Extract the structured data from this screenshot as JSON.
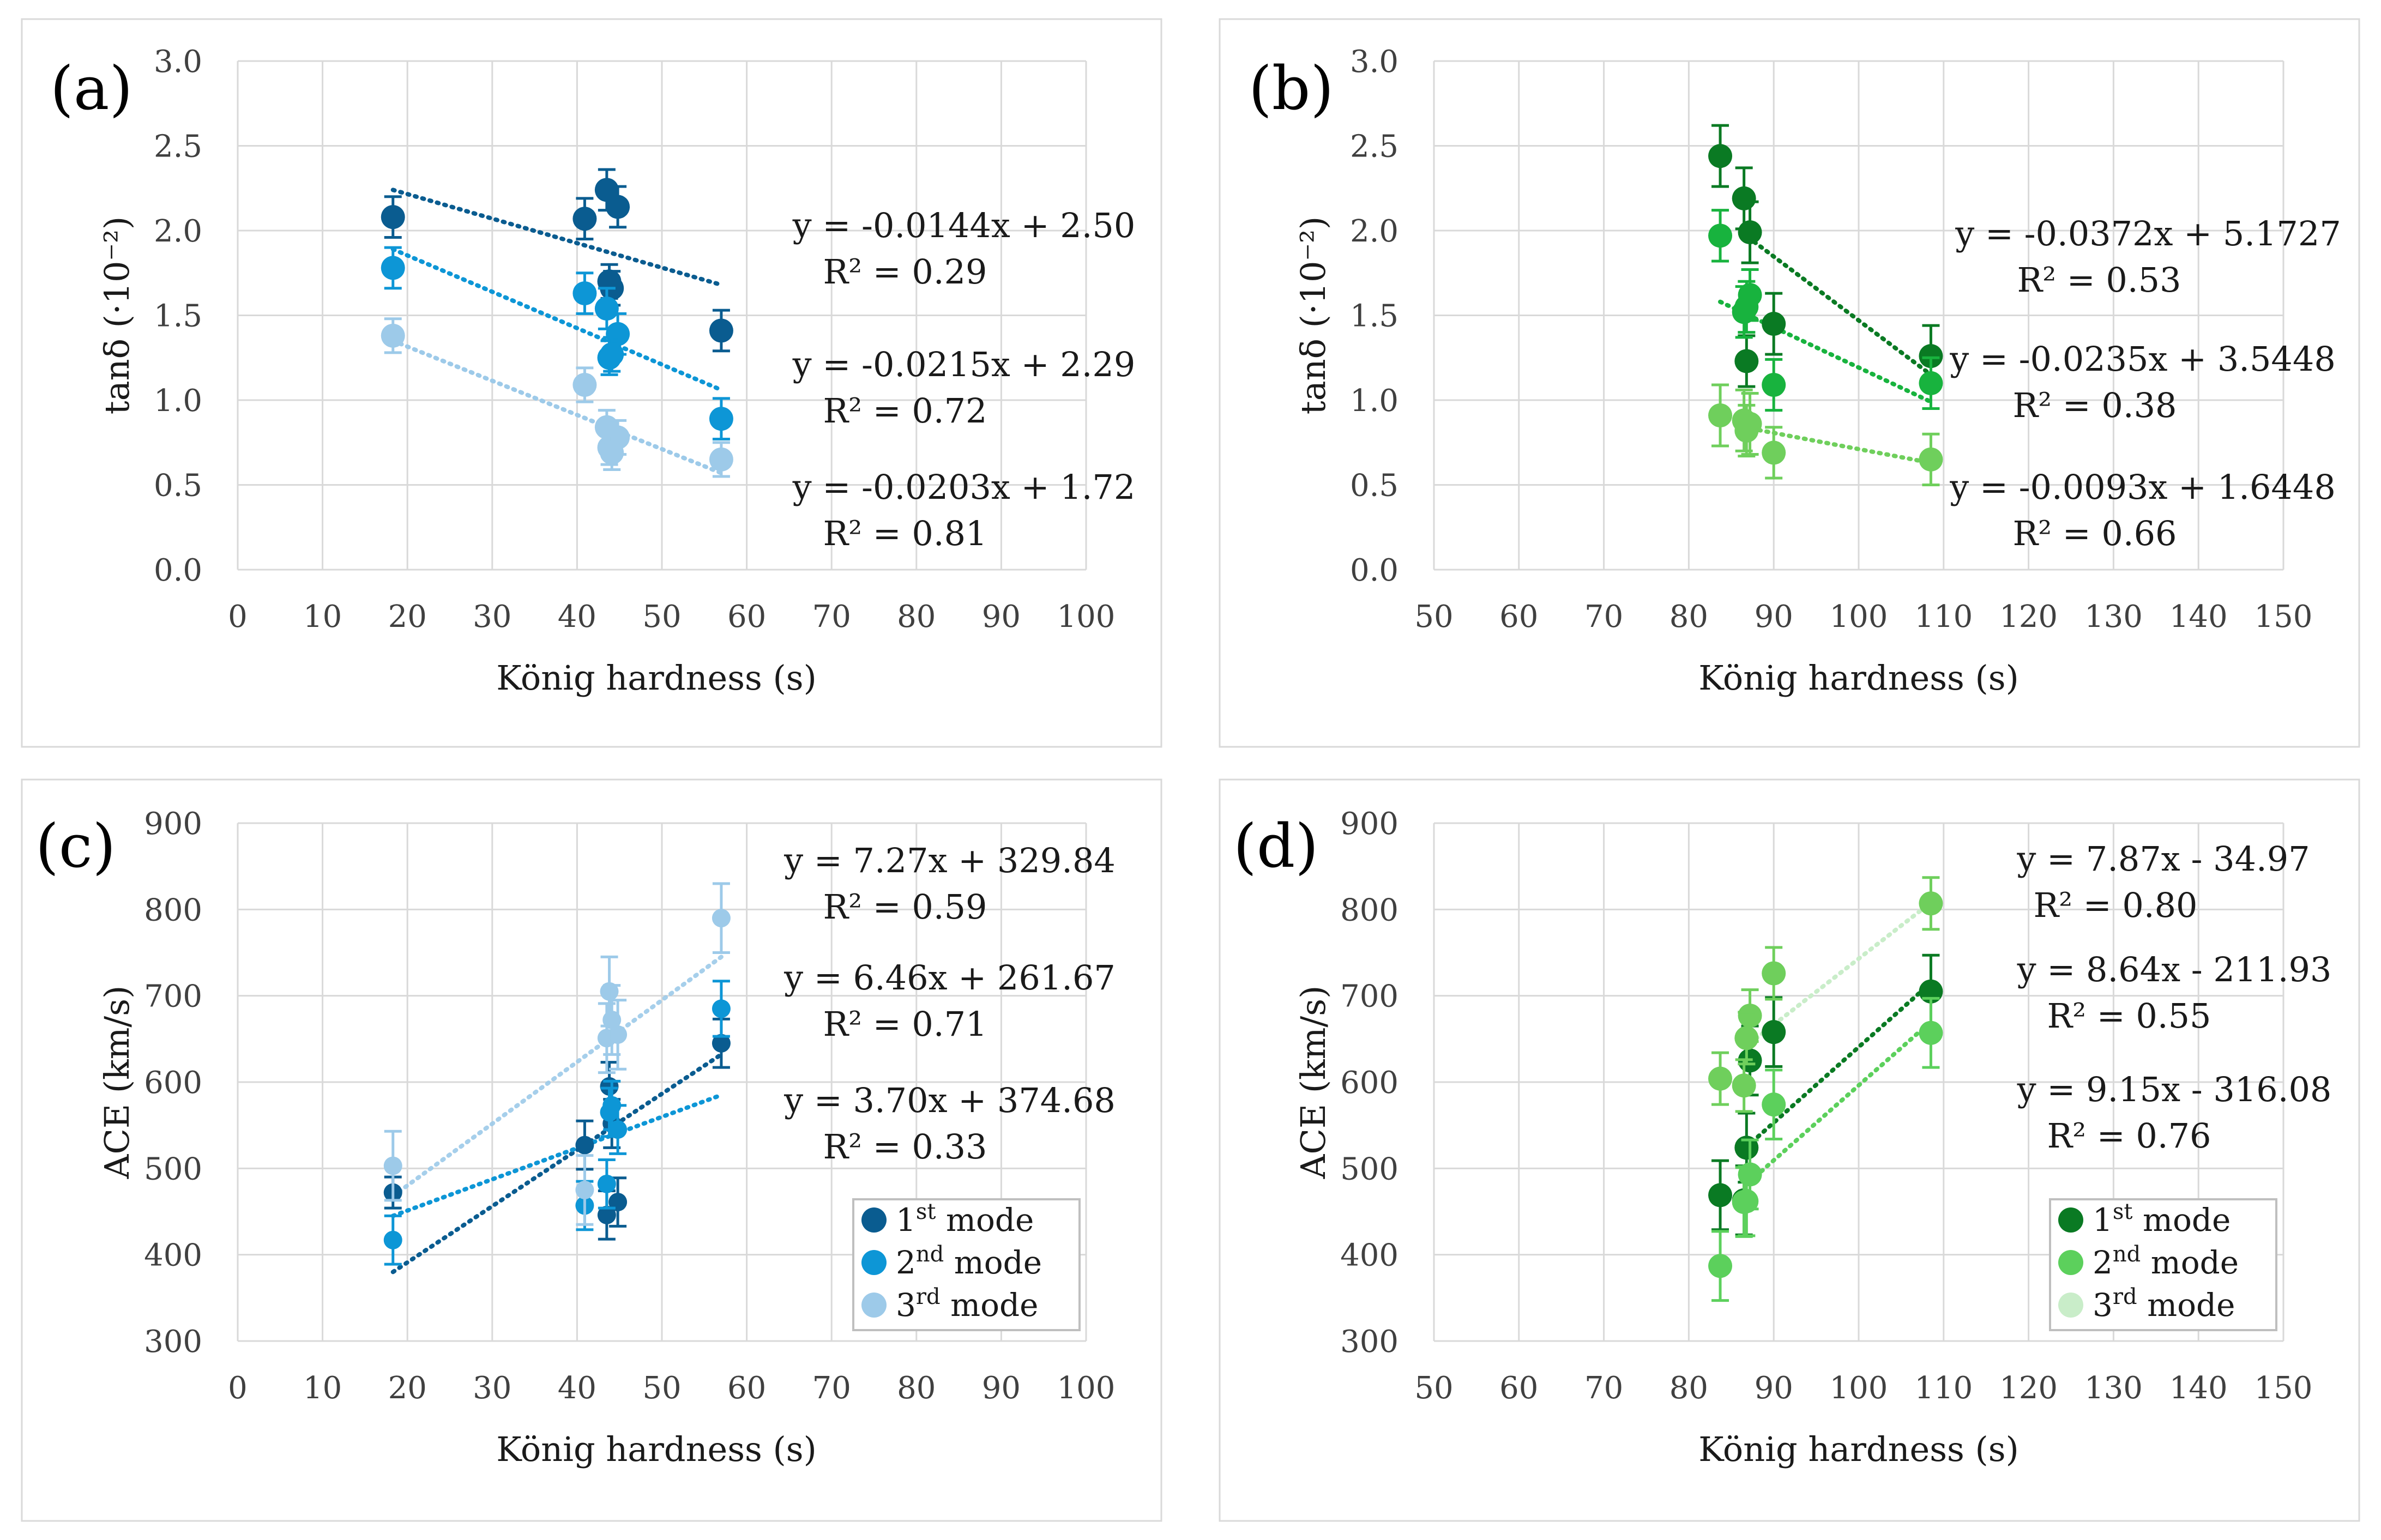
{
  "chart_data": [
    {
      "id": "a",
      "type": "scatter",
      "panel_label": "(a)",
      "xlabel": "König hardness (s)",
      "ylabel": "tanδ (·10⁻²)",
      "xlim": [
        0,
        100
      ],
      "ylim": [
        0,
        3
      ],
      "xticks": [
        "0",
        "10",
        "20",
        "30",
        "40",
        "50",
        "60",
        "70",
        "80",
        "90",
        "100"
      ],
      "yticks": [
        "0.0",
        "0.5",
        "1.0",
        "1.5",
        "2.0",
        "2.5",
        "3.0"
      ],
      "series": [
        {
          "name": "1st mode",
          "color": "#0a5c90",
          "points": [
            {
              "x": 18.3,
              "y": 2.08,
              "err": 0.12
            },
            {
              "x": 40.9,
              "y": 2.07,
              "err": 0.12
            },
            {
              "x": 43.5,
              "y": 2.24,
              "err": 0.12
            },
            {
              "x": 44.8,
              "y": 2.14,
              "err": 0.12
            },
            {
              "x": 43.8,
              "y": 1.7,
              "err": 0.1
            },
            {
              "x": 44.1,
              "y": 1.66,
              "err": 0.1
            },
            {
              "x": 57,
              "y": 1.41,
              "err": 0.12
            }
          ],
          "trend": {
            "x": [
              18.3,
              57
            ],
            "y": [
              2.24,
              1.68
            ]
          }
        },
        {
          "name": "2nd mode",
          "color": "#0d96d6",
          "points": [
            {
              "x": 18.3,
              "y": 1.78,
              "err": 0.12
            },
            {
              "x": 40.9,
              "y": 1.63,
              "err": 0.12
            },
            {
              "x": 43.5,
              "y": 1.54,
              "err": 0.12
            },
            {
              "x": 44.8,
              "y": 1.39,
              "err": 0.12
            },
            {
              "x": 43.8,
              "y": 1.25,
              "err": 0.1
            },
            {
              "x": 44.1,
              "y": 1.27,
              "err": 0.1
            },
            {
              "x": 57,
              "y": 0.89,
              "err": 0.12
            }
          ],
          "trend": {
            "x": [
              18.3,
              57
            ],
            "y": [
              1.89,
              1.06
            ]
          }
        },
        {
          "name": "3rd mode",
          "color": "#9dcae9",
          "points": [
            {
              "x": 18.3,
              "y": 1.38,
              "err": 0.1
            },
            {
              "x": 40.9,
              "y": 1.09,
              "err": 0.1
            },
            {
              "x": 43.5,
              "y": 0.84,
              "err": 0.1
            },
            {
              "x": 44.8,
              "y": 0.78,
              "err": 0.1
            },
            {
              "x": 43.8,
              "y": 0.72,
              "err": 0.1
            },
            {
              "x": 44.1,
              "y": 0.69,
              "err": 0.1
            },
            {
              "x": 57,
              "y": 0.65,
              "err": 0.1
            }
          ],
          "trend": {
            "x": [
              18.3,
              57
            ],
            "y": [
              1.35,
              0.57
            ]
          }
        }
      ],
      "equations": [
        {
          "eq": "y = -0.0144x + 2.50",
          "r2": "R² = 0.29"
        },
        {
          "eq": "y = -0.0215x + 2.29",
          "r2": "R² = 0.72"
        },
        {
          "eq": "y = -0.0203x + 1.72",
          "r2": "R² = 0.81"
        }
      ],
      "legend": false
    },
    {
      "id": "b",
      "type": "scatter",
      "panel_label": "(b)",
      "xlabel": "König hardness (s)",
      "ylabel": "tanδ (·10⁻²)",
      "xlim": [
        50,
        150
      ],
      "ylim": [
        0,
        3
      ],
      "xticks": [
        "50",
        "60",
        "70",
        "80",
        "90",
        "100",
        "110",
        "120",
        "130",
        "140",
        "150"
      ],
      "yticks": [
        "0.0",
        "0.5",
        "1.0",
        "1.5",
        "2.0",
        "2.5",
        "3.0"
      ],
      "series": [
        {
          "name": "1st mode",
          "color": "#0a7a23",
          "points": [
            {
              "x": 83.7,
              "y": 2.44,
              "err": 0.18
            },
            {
              "x": 86.5,
              "y": 2.19,
              "err": 0.18
            },
            {
              "x": 87.2,
              "y": 1.99,
              "err": 0.18
            },
            {
              "x": 86.8,
              "y": 1.23,
              "err": 0.15
            },
            {
              "x": 90,
              "y": 1.45,
              "err": 0.18
            },
            {
              "x": 108.5,
              "y": 1.26,
              "err": 0.18
            }
          ],
          "trend": {
            "x": [
              87,
              108.5
            ],
            "y": [
              1.96,
              1.15
            ]
          }
        },
        {
          "name": "2nd mode",
          "color": "#18b33e",
          "points": [
            {
              "x": 83.7,
              "y": 1.97,
              "err": 0.15
            },
            {
              "x": 86.5,
              "y": 1.52,
              "err": 0.15
            },
            {
              "x": 87.2,
              "y": 1.62,
              "err": 0.15
            },
            {
              "x": 86.8,
              "y": 1.55,
              "err": 0.15
            },
            {
              "x": 90,
              "y": 1.09,
              "err": 0.15
            },
            {
              "x": 108.5,
              "y": 1.1,
              "err": 0.15
            }
          ],
          "trend": {
            "x": [
              83.7,
              108.5
            ],
            "y": [
              1.58,
              0.99
            ]
          }
        },
        {
          "name": "3rd mode",
          "color": "#6fcf5c",
          "points": [
            {
              "x": 83.7,
              "y": 0.91,
              "err": 0.18
            },
            {
              "x": 86.5,
              "y": 0.88,
              "err": 0.18
            },
            {
              "x": 87.2,
              "y": 0.86,
              "err": 0.18
            },
            {
              "x": 86.8,
              "y": 0.82,
              "err": 0.15
            },
            {
              "x": 90,
              "y": 0.69,
              "err": 0.15
            },
            {
              "x": 108.5,
              "y": 0.65,
              "err": 0.15
            }
          ],
          "trend": {
            "x": [
              86.5,
              108.5
            ],
            "y": [
              0.84,
              0.63
            ]
          }
        }
      ],
      "equations": [
        {
          "eq": "y = -0.0372x + 5.1727",
          "r2": "R² = 0.53"
        },
        {
          "eq": "y = -0.0235x + 3.5448",
          "r2": "R² = 0.38"
        },
        {
          "eq": "y = -0.0093x + 1.6448",
          "r2": "R² = 0.66"
        }
      ],
      "legend": false
    },
    {
      "id": "c",
      "type": "scatter",
      "panel_label": "(c)",
      "xlabel": "König hardness (s)",
      "ylabel": "ACE (km/s)",
      "xlim": [
        0,
        100
      ],
      "ylim": [
        300,
        900
      ],
      "xticks": [
        "0",
        "10",
        "20",
        "30",
        "40",
        "50",
        "60",
        "70",
        "80",
        "90",
        "100"
      ],
      "yticks": [
        "300",
        "400",
        "500",
        "600",
        "700",
        "800",
        "900"
      ],
      "series": [
        {
          "name": "1st mode",
          "color": "#0a5c90",
          "points": [
            {
              "x": 18.3,
              "y": 472,
              "err": 18
            },
            {
              "x": 40.9,
              "y": 527,
              "err": 28
            },
            {
              "x": 43.5,
              "y": 446,
              "err": 28
            },
            {
              "x": 44.8,
              "y": 461,
              "err": 28
            },
            {
              "x": 43.8,
              "y": 595,
              "err": 28
            },
            {
              "x": 44.1,
              "y": 552,
              "err": 28
            },
            {
              "x": 57,
              "y": 645,
              "err": 28
            }
          ],
          "trend": {
            "x": [
              18.3,
              57
            ],
            "y": [
              380,
              632
            ]
          }
        },
        {
          "name": "2nd mode",
          "color": "#0d96d6",
          "points": [
            {
              "x": 18.3,
              "y": 417,
              "err": 28
            },
            {
              "x": 40.9,
              "y": 457,
              "err": 28
            },
            {
              "x": 43.5,
              "y": 482,
              "err": 28
            },
            {
              "x": 44.8,
              "y": 545,
              "err": 28
            },
            {
              "x": 43.8,
              "y": 565,
              "err": 28
            },
            {
              "x": 44.1,
              "y": 573,
              "err": 28
            },
            {
              "x": 57,
              "y": 685,
              "err": 32
            }
          ],
          "trend": {
            "x": [
              18.3,
              57
            ],
            "y": [
              445,
              585
            ]
          }
        },
        {
          "name": "3rd mode",
          "color": "#9dcae9",
          "points": [
            {
              "x": 18.3,
              "y": 503,
              "err": 40
            },
            {
              "x": 40.9,
              "y": 475,
              "err": 40
            },
            {
              "x": 43.5,
              "y": 651,
              "err": 40
            },
            {
              "x": 44.8,
              "y": 655,
              "err": 40
            },
            {
              "x": 43.8,
              "y": 705,
              "err": 40
            },
            {
              "x": 44.1,
              "y": 672,
              "err": 40
            },
            {
              "x": 57,
              "y": 790,
              "err": 40
            }
          ],
          "trend": {
            "x": [
              18.3,
              57
            ],
            "y": [
              468,
              745
            ]
          }
        }
      ],
      "equations": [
        {
          "eq": "y = 7.27x + 329.84",
          "r2": "R² = 0.59"
        },
        {
          "eq": "y = 6.46x + 261.67",
          "r2": "R² = 0.71"
        },
        {
          "eq": "y = 3.70x + 374.68",
          "r2": "R² = 0.33"
        }
      ],
      "legend": true,
      "legend_position": "bottom-right"
    },
    {
      "id": "d",
      "type": "scatter",
      "panel_label": "(d)",
      "xlabel": "König hardness (s)",
      "ylabel": "ACE (km/s)",
      "xlim": [
        50,
        150
      ],
      "ylim": [
        300,
        900
      ],
      "xticks": [
        "50",
        "60",
        "70",
        "80",
        "90",
        "100",
        "110",
        "120",
        "130",
        "140",
        "150"
      ],
      "yticks": [
        "300",
        "400",
        "500",
        "600",
        "700",
        "800",
        "900"
      ],
      "series": [
        {
          "name": "1st mode",
          "color": "#0a7a23",
          "points": [
            {
              "x": 83.7,
              "y": 469,
              "err": 40
            },
            {
              "x": 86.5,
              "y": 463,
              "err": 40
            },
            {
              "x": 87.2,
              "y": 625,
              "err": 40
            },
            {
              "x": 86.8,
              "y": 524,
              "err": 40
            },
            {
              "x": 90,
              "y": 658,
              "err": 40
            },
            {
              "x": 108.5,
              "y": 705,
              "err": 42
            }
          ],
          "trend": {
            "x": [
              86.8,
              108.5
            ],
            "y": [
              525,
              715
            ]
          }
        },
        {
          "name": "2nd mode",
          "color": "#5cd05c",
          "points": [
            {
              "x": 83.7,
              "y": 387,
              "err": 40
            },
            {
              "x": 86.5,
              "y": 461,
              "err": 40
            },
            {
              "x": 87.2,
              "y": 493,
              "err": 40
            },
            {
              "x": 86.8,
              "y": 462,
              "err": 40
            },
            {
              "x": 90,
              "y": 574,
              "err": 40
            },
            {
              "x": 108.5,
              "y": 657,
              "err": 40
            }
          ],
          "trend": {
            "x": [
              87.2,
              108.5
            ],
            "y": [
              485,
              670
            ]
          }
        },
        {
          "name": "3rd mode",
          "color": "#c9edc9",
          "points": [
            {
              "x": 83.7,
              "y": 604,
              "err": 30
            },
            {
              "x": 86.5,
              "y": 596,
              "err": 30
            },
            {
              "x": 87.2,
              "y": 677,
              "err": 30
            },
            {
              "x": 86.8,
              "y": 651,
              "err": 30
            },
            {
              "x": 90,
              "y": 726,
              "err": 30
            },
            {
              "x": 108.5,
              "y": 807,
              "err": 30
            }
          ],
          "trend": {
            "x": [
              87.2,
              108.5
            ],
            "y": [
              645,
              808
            ]
          }
        }
      ],
      "point_colors": [
        "#0a7a23",
        "#5cd05c",
        "#6fcf5c"
      ],
      "equations": [
        {
          "eq": "y = 7.87x - 34.97",
          "r2": "R² = 0.80"
        },
        {
          "eq": "y = 8.64x - 211.93",
          "r2": "R² = 0.55"
        },
        {
          "eq": "y = 9.15x - 316.08",
          "r2": "R² = 0.76"
        }
      ],
      "legend": true,
      "legend_position": "bottom-right"
    }
  ]
}
